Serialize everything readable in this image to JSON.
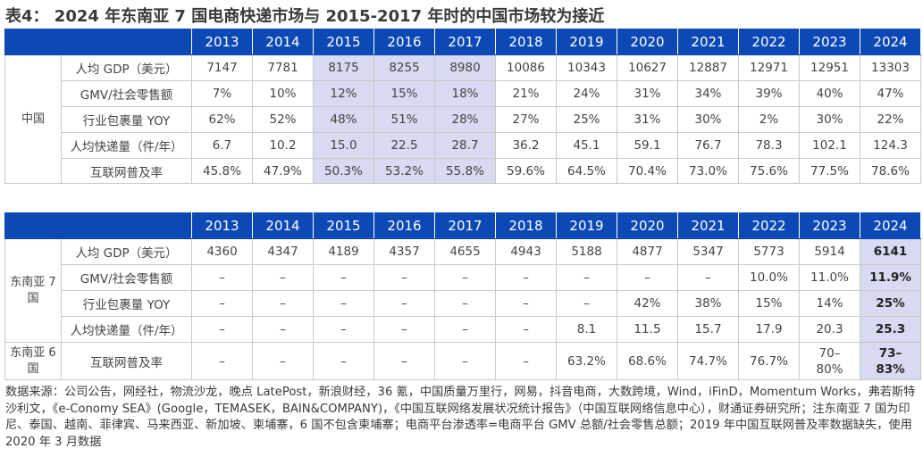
{
  "title": "表4： 2024 年东南亚 7 国电商快递市场与 2015-2017 年时的中国市场较为接近",
  "years": [
    "2013",
    "2014",
    "2015",
    "2016",
    "2017",
    "2018",
    "2019",
    "2020",
    "2021",
    "2022",
    "2023",
    "2024"
  ],
  "table1": {
    "country": "中国",
    "rows": [
      {
        "label": "人均 GDP（美元）",
        "values": [
          "7147",
          "7781",
          "8175",
          "8255",
          "8980",
          "10086",
          "10343",
          "10627",
          "12887",
          "12971",
          "12951",
          "13303"
        ]
      },
      {
        "label": "GMV/社会零售额",
        "values": [
          "7%",
          "10%",
          "12%",
          "15%",
          "18%",
          "21%",
          "24%",
          "31%",
          "34%",
          "39%",
          "40%",
          "47%"
        ]
      },
      {
        "label": "行业包裹量 YOY",
        "values": [
          "62%",
          "52%",
          "48%",
          "51%",
          "28%",
          "27%",
          "25%",
          "31%",
          "30%",
          "2%",
          "30%",
          "22%"
        ]
      },
      {
        "label": "人均快递量（件/年）",
        "values": [
          "6.7",
          "10.2",
          "15.0",
          "22.5",
          "28.7",
          "36.2",
          "45.1",
          "59.1",
          "76.7",
          "78.3",
          "102.1",
          "124.3"
        ]
      },
      {
        "label": "互联网普及率",
        "values": [
          "45.8%",
          "47.9%",
          "50.3%",
          "53.2%",
          "55.8%",
          "59.6%",
          "64.5%",
          "70.4%",
          "73.0%",
          "75.6%",
          "77.5%",
          "78.6%"
        ]
      }
    ]
  },
  "table2": {
    "country7": "东南亚 7 国",
    "country6": "东南亚 6 国",
    "rows": [
      {
        "label": "人均 GDP（美元）",
        "values": [
          "4360",
          "4347",
          "4189",
          "4357",
          "4655",
          "4943",
          "5188",
          "4877",
          "5347",
          "5773",
          "5914",
          "6141"
        ]
      },
      {
        "label": "GMV/社会零售额",
        "values": [
          "–",
          "–",
          "–",
          "–",
          "–",
          "–",
          "–",
          "–",
          "–",
          "10.0%",
          "11.0%",
          "11.9%"
        ]
      },
      {
        "label": "行业包裹量 YOY",
        "values": [
          "–",
          "–",
          "–",
          "–",
          "–",
          "–",
          "–",
          "42%",
          "38%",
          "15%",
          "14%",
          "25%"
        ]
      },
      {
        "label": "人均快递量（件/年）",
        "values": [
          "–",
          "–",
          "–",
          "–",
          "–",
          "–",
          "8.1",
          "11.5",
          "15.7",
          "17.9",
          "20.3",
          "25.3"
        ]
      },
      {
        "label": "互联网普及率",
        "values": [
          "–",
          "–",
          "–",
          "–",
          "–",
          "–",
          "63.2%",
          "68.6%",
          "74.7%",
          "76.7%",
          "70–80%",
          "73–83%"
        ]
      }
    ]
  },
  "note": "数据来源：公司公告，网经社，物流沙龙，晚点 LatePost，新浪财经，36 氪，中国质量万里行，网易，抖音电商，大数跨境，Wind，iFinD，Momentum Works，弗若斯特沙利文，《e-Conomy SEA》(Google，TEMASEK，BAIN&COMPANY)，《中国互联网络发展状况统计报告》（中国互联网络信息中心），财通证券研究所；注东南亚 7 国为印尼、泰国、越南、菲律宾、马来西亚、新加坡、柬埔寨，6 国不包含柬埔寨；电商平台渗透率=电商平台 GMV 总额/社会零售总额；2019 年中国互联网普及率数据缺失，使用 2020 年 3 月数据",
  "colors": {
    "header_bg": "#0c49b5",
    "highlight": "#d7daf1"
  }
}
